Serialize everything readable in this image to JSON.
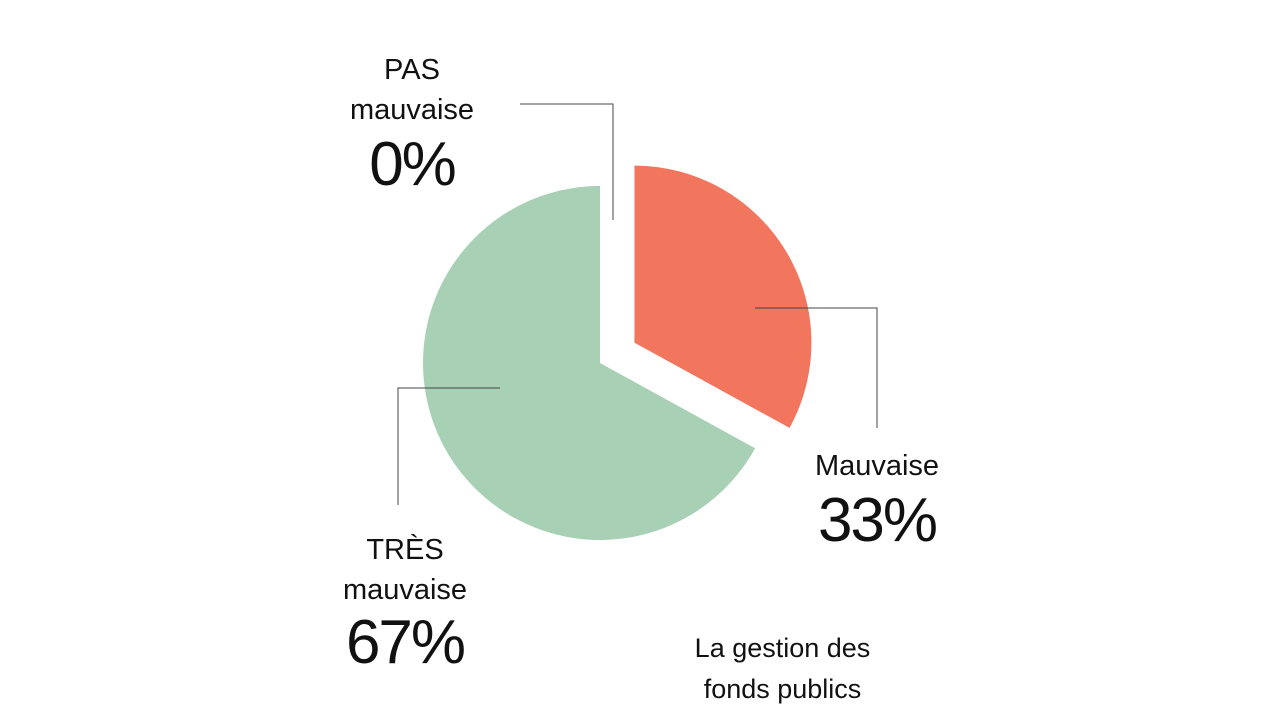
{
  "chart_data": {
    "type": "pie",
    "title": "La gestion des fonds publics",
    "categories": [
      "PAS mauvaise",
      "Mauvaise",
      "TRÈS mauvaise"
    ],
    "values": [
      0,
      33,
      67
    ],
    "value_labels": [
      "0%",
      "33%",
      "67%"
    ],
    "colors": [
      "#f2765e",
      "#f2765e",
      "#a8d0b4"
    ]
  }
}
